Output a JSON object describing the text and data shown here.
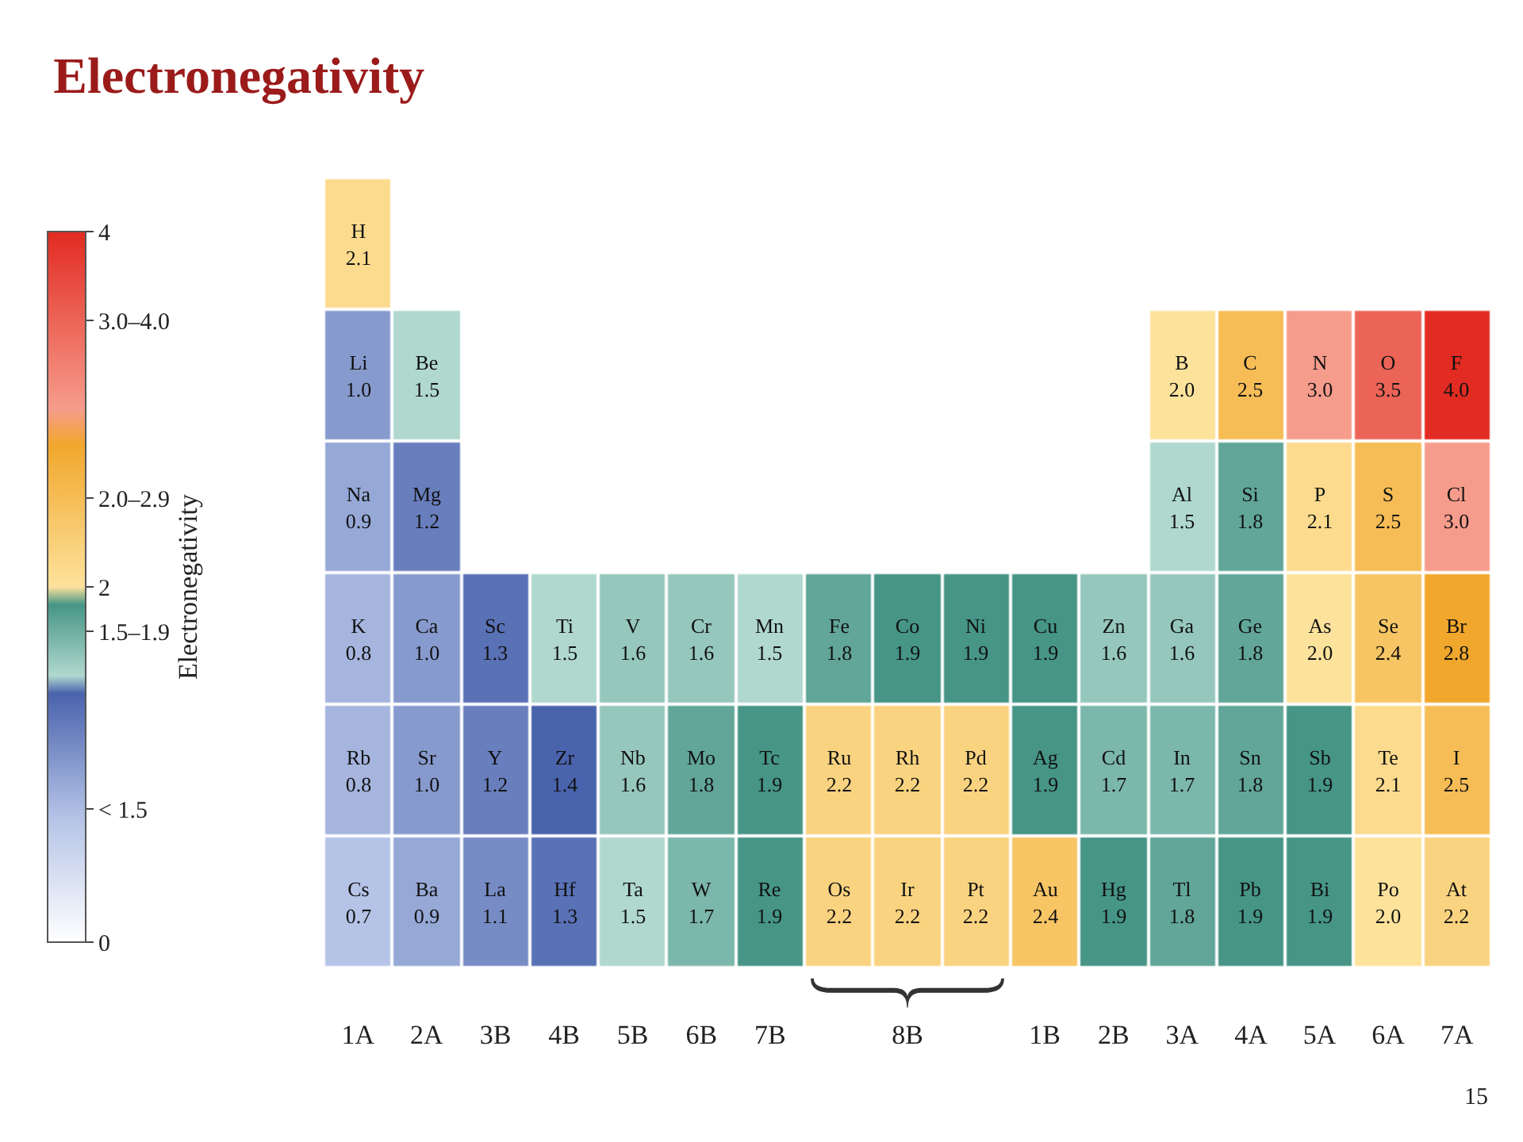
{
  "chart_data": {
    "type": "heatmap",
    "title": "Electronegativity",
    "clabel": "Electronegativity",
    "categories": [
      "1A",
      "2A",
      "3B",
      "4B",
      "5B",
      "6B",
      "7B",
      null,
      "8B",
      null,
      "1B",
      "2B",
      "3A",
      "4A",
      "5A",
      "6A",
      "7A"
    ],
    "y_categories": [
      null,
      null,
      null,
      null,
      null,
      null
    ],
    "cells": [
      [
        2.1,
        null,
        null,
        null,
        null,
        null,
        null,
        null,
        null,
        null,
        null,
        null,
        null,
        null,
        null,
        null,
        null
      ],
      [
        1.0,
        1.5,
        null,
        null,
        null,
        null,
        null,
        null,
        null,
        null,
        null,
        null,
        2.0,
        2.5,
        3.0,
        3.5,
        4.0
      ],
      [
        0.9,
        1.2,
        null,
        null,
        null,
        null,
        null,
        null,
        null,
        null,
        null,
        null,
        1.5,
        1.8,
        2.1,
        2.5,
        3.0
      ],
      [
        0.8,
        1.0,
        1.3,
        1.5,
        1.6,
        1.6,
        1.5,
        1.8,
        1.9,
        1.9,
        1.9,
        1.6,
        1.6,
        1.8,
        2.0,
        2.4,
        2.8
      ],
      [
        0.8,
        1.0,
        1.2,
        1.4,
        1.6,
        1.8,
        1.9,
        2.2,
        2.2,
        2.2,
        1.9,
        1.7,
        1.7,
        1.8,
        1.9,
        2.1,
        2.5
      ],
      [
        0.7,
        0.9,
        1.1,
        1.3,
        1.5,
        1.7,
        1.9,
        2.2,
        2.2,
        2.2,
        2.4,
        1.9,
        1.8,
        1.9,
        1.9,
        2.0,
        2.2
      ]
    ],
    "cell_labels": [
      [
        "H\n2.1",
        null,
        null,
        null,
        null,
        null,
        null,
        null,
        null,
        null,
        null,
        null,
        null,
        null,
        null,
        null,
        null
      ],
      [
        "Li\n1.0",
        "Be\n1.5",
        null,
        null,
        null,
        null,
        null,
        null,
        null,
        null,
        null,
        null,
        "B\n2.0",
        "C\n2.5",
        "N\n3.0",
        "O\n3.5",
        "F\n4.0"
      ],
      [
        "Na\n0.9",
        "Mg\n1.2",
        null,
        null,
        null,
        null,
        null,
        null,
        null,
        null,
        null,
        null,
        "Al\n1.5",
        "Si\n1.8",
        "P\n2.1",
        "S\n2.5",
        "Cl\n3.0"
      ],
      [
        "K\n0.8",
        "Ca\n1.0",
        "Sc\n1.3",
        "Ti\n1.5",
        "V\n1.6",
        "Cr\n1.6",
        "Mn\n1.5",
        "Fe\n1.8",
        "Co\n1.9",
        "Ni\n1.9",
        "Cu\n1.9",
        "Zn\n1.6",
        "Ga\n1.6",
        "Ge\n1.8",
        "As\n2.0",
        "Se\n2.4",
        "Br\n2.8"
      ],
      [
        "Rb\n0.8",
        "Sr\n1.0",
        "Y\n1.2",
        "Zr\n1.4",
        "Nb\n1.6",
        "Mo\n1.8",
        "Tc\n1.9",
        "Ru\n2.2",
        "Rh\n2.2",
        "Pd\n2.2",
        "Ag\n1.9",
        "Cd\n1.7",
        "In\n1.7",
        "Sn\n1.8",
        "Sb\n1.9",
        "Te\n2.1",
        "I\n2.5"
      ],
      [
        "Cs\n0.7",
        "Ba\n0.9",
        "La\n1.1",
        "Hf\n1.3",
        "Ta\n1.5",
        "W\n1.7",
        "Re\n1.9",
        "Os\n2.2",
        "Ir\n2.2",
        "Pt\n2.2",
        "Au\n2.4",
        "Hg\n1.9",
        "Tl\n1.8",
        "Pb\n1.9",
        "Bi\n1.9",
        "Po\n2.0",
        "At\n2.2"
      ]
    ],
    "colors": [
      [
        "#fcdb8e",
        null,
        null,
        null,
        null,
        null,
        null,
        null,
        null,
        null,
        null,
        null,
        null,
        null,
        null,
        null,
        null
      ],
      [
        "#879ace",
        "#b0d8ce",
        null,
        null,
        null,
        null,
        null,
        null,
        null,
        null,
        null,
        null,
        "#fde29c",
        "#f6bd56",
        "#f69c8c",
        "#ec6457",
        "#e22b22"
      ],
      [
        "#96a8d6",
        "#687ebd",
        null,
        null,
        null,
        null,
        null,
        null,
        null,
        null,
        null,
        null,
        "#b0d8ce",
        "#61a698",
        "#fcdb8e",
        "#f6bd56",
        "#f69c8c"
      ],
      [
        "#a5b5de",
        "#879ace",
        "#5971b5",
        "#b0d8ce",
        "#96c7bc",
        "#96c7bc",
        "#b0d8ce",
        "#61a698",
        "#469586",
        "#469586",
        "#469586",
        "#96c7bc",
        "#96c7bc",
        "#61a698",
        "#fde29c",
        "#f7c564",
        "#f1a72c"
      ],
      [
        "#a5b5de",
        "#879ace",
        "#687ebd",
        "#4a63ad",
        "#96c7bc",
        "#61a698",
        "#469586",
        "#fad380",
        "#fad380",
        "#fad380",
        "#469586",
        "#7bb7aa",
        "#7bb7aa",
        "#61a698",
        "#469586",
        "#fcdb8e",
        "#f6bd56"
      ],
      [
        "#b4c3e6",
        "#96a8d6",
        "#778cc5",
        "#5971b5",
        "#b0d8ce",
        "#7bb7aa",
        "#469586",
        "#fad380",
        "#fad380",
        "#fad380",
        "#f7c564",
        "#469586",
        "#61a698",
        "#469586",
        "#469586",
        "#fde29c",
        "#fad380"
      ]
    ],
    "clim": [
      0,
      4
    ],
    "cticks": [
      0,
      {
        "value": 0.75,
        "label": "< 1.5"
      },
      {
        "value": 1.75,
        "label": "1.5–1.9"
      },
      2,
      {
        "value": 2.5,
        "label": "2.0–2.9"
      },
      {
        "value": 3.5,
        "label": "3.0–4.0"
      },
      4
    ],
    "annotations": [
      "15"
    ]
  }
}
